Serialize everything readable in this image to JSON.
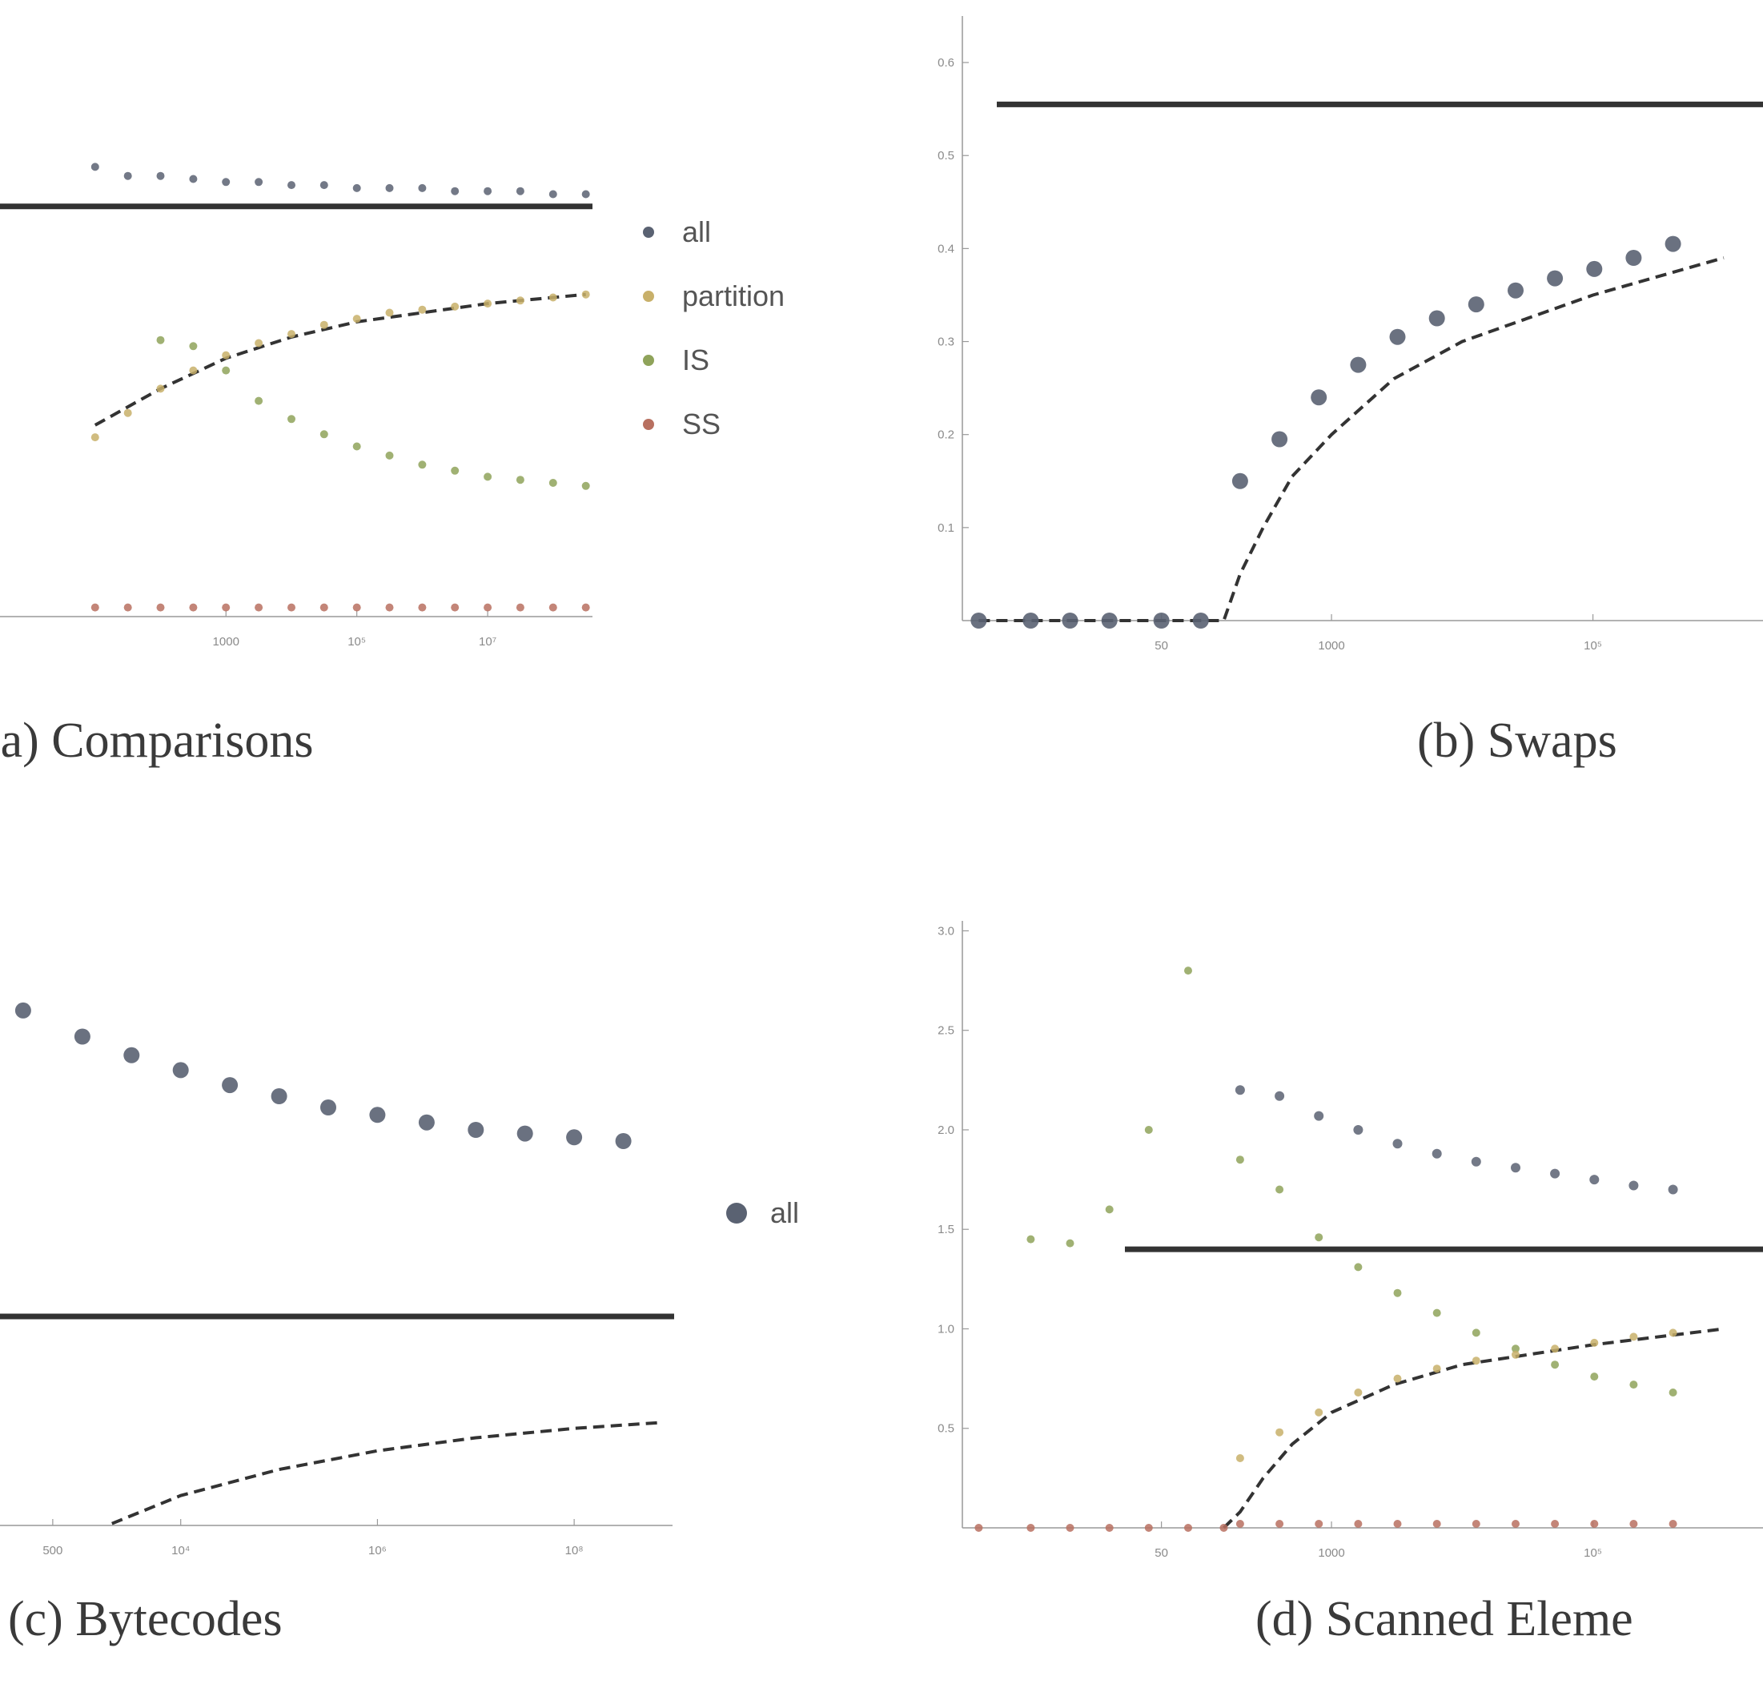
{
  "colors": {
    "all": "#5a6272",
    "partition": "#c8b06a",
    "IS": "#8fa35a",
    "SS": "#b87060",
    "axis": "#999999",
    "line": "#333333"
  },
  "chart_data": [
    {
      "type": "scatter",
      "caption": "(a) Comparisons",
      "log_x": true,
      "xticks": [
        {
          "value": 1000,
          "label": "1000"
        },
        {
          "value": 100000,
          "label": "10⁵"
        },
        {
          "value": 10000000,
          "label": "10⁷"
        }
      ],
      "yticks": [],
      "legend": [
        "all",
        "partition",
        "IS",
        "SS"
      ],
      "series": [
        {
          "name": "all",
          "x": [
            10,
            31.6,
            100,
            316,
            1000,
            3162,
            10000,
            31623,
            100000,
            316228,
            1000000,
            3162278,
            10000000,
            31622777,
            100000000,
            316227766
          ],
          "y": [
            2.03,
            2.0,
            2.0,
            1.99,
            1.98,
            1.98,
            1.97,
            1.97,
            1.96,
            1.96,
            1.96,
            1.95,
            1.95,
            1.95,
            1.94,
            1.94
          ]
        },
        {
          "name": "partition",
          "x": [
            10,
            31.6,
            100,
            316,
            1000,
            3162,
            10000,
            31623,
            100000,
            316228,
            1000000,
            3162278,
            10000000,
            31622777,
            100000000,
            316227766
          ],
          "y": [
            1.14,
            1.22,
            1.3,
            1.36,
            1.41,
            1.45,
            1.48,
            1.51,
            1.53,
            1.55,
            1.56,
            1.57,
            1.58,
            1.59,
            1.6,
            1.61
          ]
        },
        {
          "name": "IS",
          "x": [
            100,
            316,
            1000,
            3162,
            10000,
            31623,
            100000,
            316228,
            1000000,
            3162278,
            10000000,
            31622777,
            100000000,
            316227766
          ],
          "y": [
            1.46,
            1.44,
            1.36,
            1.26,
            1.2,
            1.15,
            1.11,
            1.08,
            1.05,
            1.03,
            1.01,
            1.0,
            0.99,
            0.98
          ]
        },
        {
          "name": "SS",
          "x": [
            10,
            31.6,
            100,
            316,
            1000,
            3162,
            10000,
            31623,
            100000,
            316228,
            1000000,
            3162278,
            10000000,
            31622777,
            100000000,
            316227766
          ],
          "y": [
            0.58,
            0.58,
            0.58,
            0.58,
            0.58,
            0.58,
            0.58,
            0.58,
            0.58,
            0.58,
            0.58,
            0.58,
            0.58,
            0.58,
            0.58,
            0.58
          ]
        }
      ],
      "hline_y": 1.9,
      "dashed": {
        "x": [
          10,
          100,
          1000,
          10000,
          100000,
          1000000,
          10000000,
          100000000,
          316227766
        ],
        "y": [
          1.18,
          1.3,
          1.4,
          1.47,
          1.52,
          1.55,
          1.58,
          1.6,
          1.61
        ]
      },
      "xlim": [
        0.2,
        400000000
      ],
      "ylim": [
        0.55,
        2.5
      ]
    },
    {
      "type": "scatter",
      "caption": "(b) Swaps",
      "log_x": true,
      "xticks": [
        {
          "value": 50,
          "label": "50"
        },
        {
          "value": 1000,
          "label": "1000"
        },
        {
          "value": 100000,
          "label": "10⁵"
        }
      ],
      "yticks": [
        {
          "value": 0.1,
          "label": "0.1"
        },
        {
          "value": 0.2,
          "label": "0.2"
        },
        {
          "value": 0.3,
          "label": "0.3"
        },
        {
          "value": 0.4,
          "label": "0.4"
        },
        {
          "value": 0.5,
          "label": "0.5"
        },
        {
          "value": 0.6,
          "label": "0.6"
        }
      ],
      "legend": [],
      "series": [
        {
          "name": "all",
          "x": [
            2,
            5,
            10,
            20,
            50,
            100,
            200,
            400,
            800,
            1600,
            3200,
            6400,
            12800,
            25600,
            51200,
            102400,
            204800,
            409600
          ],
          "y": [
            0,
            0,
            0,
            0,
            0,
            0,
            0.15,
            0.195,
            0.24,
            0.275,
            0.305,
            0.325,
            0.34,
            0.355,
            0.368,
            0.378,
            0.39,
            0.405
          ]
        }
      ],
      "hline_y": 0.555,
      "dashed": {
        "x": [
          2,
          150,
          200,
          300,
          500,
          1000,
          3000,
          10000,
          100000,
          1000000
        ],
        "y": [
          0,
          0,
          0.05,
          0.1,
          0.155,
          0.2,
          0.26,
          0.3,
          0.35,
          0.39
        ]
      },
      "xlim": [
        1.5,
        2000000
      ],
      "ylim": [
        0,
        0.65
      ]
    },
    {
      "type": "scatter",
      "caption": "(c) Bytecodes",
      "log_x": true,
      "xticks": [
        {
          "value": 500,
          "label": "500"
        },
        {
          "value": 10000,
          "label": "10⁴"
        },
        {
          "value": 1000000,
          "label": "10⁶"
        },
        {
          "value": 100000000,
          "label": "10⁸"
        }
      ],
      "yticks": [],
      "legend": [
        "all"
      ],
      "series": [
        {
          "name": "all",
          "x": [
            250,
            1000,
            3162,
            10000,
            31623,
            100000,
            316228,
            1000000,
            3162278,
            10000000,
            31622777,
            100000000,
            316227766
          ],
          "y": [
            28.6,
            27.9,
            27.4,
            27.0,
            26.6,
            26.3,
            26.0,
            25.8,
            25.6,
            25.4,
            25.3,
            25.2,
            25.1
          ]
        }
      ],
      "hline_y": 20.4,
      "dashed": {
        "x": [
          2000,
          10000,
          100000,
          1000000,
          10000000,
          100000000,
          700000000
        ],
        "y": [
          14.85,
          15.6,
          16.3,
          16.8,
          17.15,
          17.4,
          17.55
        ]
      },
      "xlim": [
        100,
        1000000000
      ],
      "ylim": [
        14.8,
        31
      ]
    },
    {
      "type": "scatter",
      "caption": "(d) Scanned Eleme",
      "log_x": true,
      "xticks": [
        {
          "value": 50,
          "label": "50"
        },
        {
          "value": 1000,
          "label": "1000"
        },
        {
          "value": 100000,
          "label": "10⁵"
        }
      ],
      "yticks": [
        {
          "value": 0.5,
          "label": "0.5"
        },
        {
          "value": 1.0,
          "label": "1.0"
        },
        {
          "value": 1.5,
          "label": "1.5"
        },
        {
          "value": 2.0,
          "label": "2.0"
        },
        {
          "value": 2.5,
          "label": "2.5"
        },
        {
          "value": 3.0,
          "label": "3.0"
        }
      ],
      "legend": [],
      "series": [
        {
          "name": "all",
          "x": [
            200,
            400,
            800,
            1600,
            3200,
            6400,
            12800,
            25600,
            51200,
            102400,
            204800,
            409600
          ],
          "y": [
            2.2,
            2.17,
            2.07,
            2.0,
            1.93,
            1.88,
            1.84,
            1.81,
            1.78,
            1.75,
            1.72,
            1.7
          ]
        },
        {
          "name": "IS",
          "x": [
            5,
            10,
            20,
            40,
            80,
            200,
            400,
            800,
            1600,
            3200,
            6400,
            12800,
            25600,
            51200,
            102400,
            204800,
            409600
          ],
          "y": [
            1.45,
            1.43,
            1.6,
            2.0,
            2.8,
            1.85,
            1.7,
            1.46,
            1.31,
            1.18,
            1.08,
            0.98,
            0.9,
            0.82,
            0.76,
            0.72,
            0.68
          ]
        },
        {
          "name": "partition",
          "x": [
            200,
            400,
            800,
            1600,
            3200,
            6400,
            12800,
            25600,
            51200,
            102400,
            204800,
            409600
          ],
          "y": [
            0.35,
            0.48,
            0.58,
            0.68,
            0.75,
            0.8,
            0.84,
            0.87,
            0.9,
            0.93,
            0.96,
            0.98
          ]
        },
        {
          "name": "SS",
          "x": [
            2,
            5,
            10,
            20,
            40,
            80,
            150,
            200,
            400,
            800,
            1600,
            3200,
            6400,
            12800,
            25600,
            51200,
            102400,
            204800,
            409600
          ],
          "y": [
            0,
            0,
            0,
            0,
            0,
            0,
            0,
            0.02,
            0.02,
            0.02,
            0.02,
            0.02,
            0.02,
            0.02,
            0.02,
            0.02,
            0.02,
            0.02,
            0.02
          ]
        }
      ],
      "hline_y": 1.4,
      "dashed": {
        "x": [
          150,
          200,
          300,
          500,
          1000,
          3000,
          10000,
          100000,
          1000000
        ],
        "y": [
          0,
          0.08,
          0.25,
          0.42,
          0.58,
          0.72,
          0.82,
          0.92,
          1.0
        ]
      },
      "xlim": [
        1.5,
        2000000
      ],
      "ylim": [
        0,
        3.05
      ]
    }
  ]
}
